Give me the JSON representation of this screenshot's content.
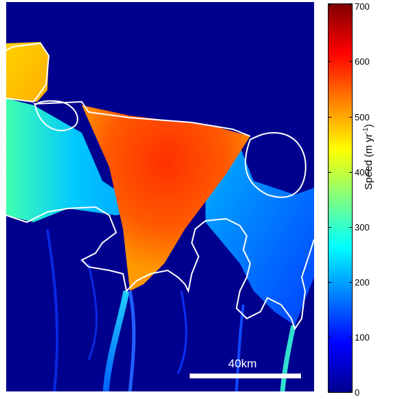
{
  "colorbar": {
    "ticks": [
      "0",
      "100",
      "200",
      "300",
      "400",
      "500",
      "600",
      "700"
    ],
    "label_main": "Speed (m yr",
    "label_sup": "-1",
    "label_close": ")"
  },
  "scale_bar": {
    "label": "40km"
  },
  "colors": {
    "background_low_speed": "#00008f",
    "outline": "#ffffff",
    "high_speed": "#ff3a00"
  }
}
